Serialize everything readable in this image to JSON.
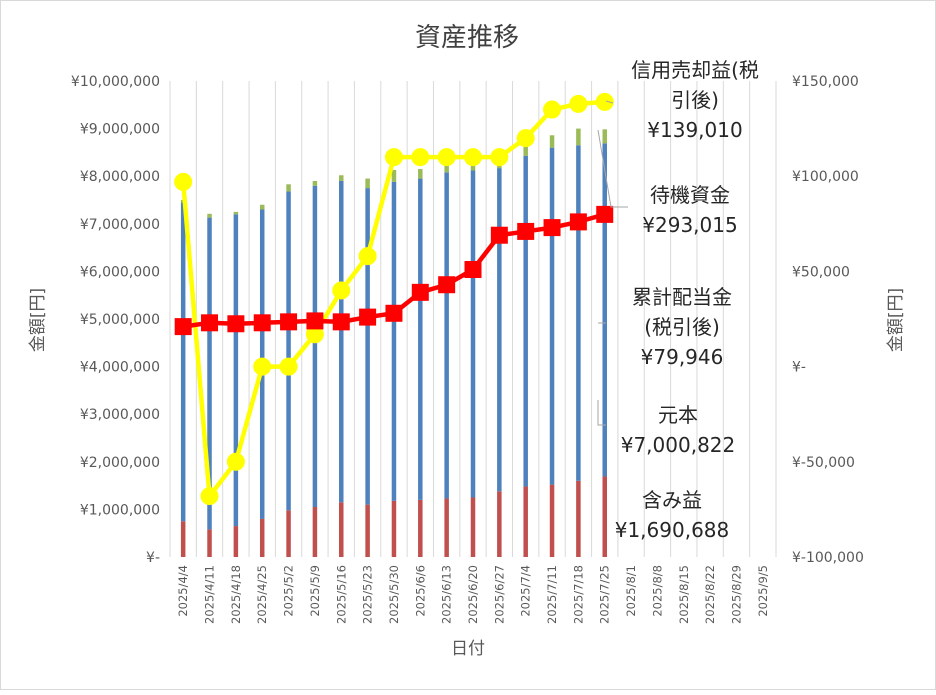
{
  "chart_data": {
    "type": "bar",
    "title": "資産推移",
    "xlabel": "日付",
    "ylabel_left": "金額[円]",
    "ylabel_right": "金額[円]",
    "ylim_left": [
      0,
      10000000
    ],
    "ylim_right": [
      -100000,
      150000
    ],
    "left_ticks": [
      "¥-",
      "¥1,000,000",
      "¥2,000,000",
      "¥3,000,000",
      "¥4,000,000",
      "¥5,000,000",
      "¥6,000,000",
      "¥7,000,000",
      "¥8,000,000",
      "¥9,000,000",
      "¥10,000,000"
    ],
    "right_ticks": [
      "¥-100,000",
      "¥-50,000",
      "¥-",
      "¥50,000",
      "¥100,000",
      "¥150,000"
    ],
    "categories": [
      "2025/4/4",
      "2025/4/11",
      "2025/4/18",
      "2025/4/25",
      "2025/5/2",
      "2025/5/9",
      "2025/5/16",
      "2025/5/23",
      "2025/5/30",
      "2025/6/6",
      "2025/6/13",
      "2025/6/20",
      "2025/6/27",
      "2025/7/4",
      "2025/7/11",
      "2025/7/18",
      "2025/7/25",
      "2025/8/1",
      "2025/8/8",
      "2025/8/15",
      "2025/8/22",
      "2025/8/29",
      "2025/9/5"
    ],
    "grid": "vertical",
    "series": [
      {
        "name": "含み益",
        "kind": "stacked-bar",
        "axis": "left",
        "color": "#c0504d",
        "values": [
          750000,
          580000,
          650000,
          800000,
          980000,
          1050000,
          1150000,
          1100000,
          1180000,
          1200000,
          1230000,
          1250000,
          1380000,
          1480000,
          1520000,
          1600000,
          1690688,
          null,
          null,
          null,
          null,
          null,
          null
        ]
      },
      {
        "name": "元本",
        "kind": "stacked-bar",
        "axis": "left",
        "color": "#4f81bd",
        "values": [
          6700000,
          6550000,
          6550000,
          6500000,
          6700000,
          6750000,
          6750000,
          6650000,
          6700000,
          6750000,
          6850000,
          6870000,
          6790000,
          6950000,
          7080000,
          7050000,
          7000822,
          null,
          null,
          null,
          null,
          null,
          null
        ]
      },
      {
        "name": "待機資金",
        "kind": "stacked-bar",
        "axis": "left",
        "color": "#9bbb59",
        "values": [
          50000,
          80000,
          50000,
          100000,
          150000,
          100000,
          120000,
          200000,
          250000,
          200000,
          150000,
          180000,
          180000,
          200000,
          260000,
          350000,
          293015,
          null,
          null,
          null,
          null,
          null,
          null
        ]
      },
      {
        "name": "信用売却益(税引後)",
        "kind": "line",
        "axis": "right",
        "color": "#ffff00",
        "marker": "circle",
        "values": [
          97000,
          -68000,
          -50000,
          0,
          0,
          17000,
          40000,
          58000,
          110000,
          110000,
          110000,
          110000,
          110000,
          120000,
          135000,
          138000,
          139010,
          null,
          null,
          null,
          null,
          null,
          null
        ]
      },
      {
        "name": "累計配当金(税引後)",
        "kind": "line",
        "axis": "right",
        "color": "#ff0000",
        "marker": "square",
        "values": [
          21000,
          23000,
          22500,
          23000,
          23500,
          24000,
          23500,
          26000,
          28000,
          39000,
          43000,
          51000,
          69000,
          71000,
          73000,
          76000,
          79946,
          null,
          null,
          null,
          null,
          null,
          null
        ]
      }
    ],
    "annotations": [
      {
        "lines": [
          "信用売却益(税",
          "引後)",
          "¥139,010"
        ]
      },
      {
        "lines": [
          "待機資金",
          "¥293,015"
        ]
      },
      {
        "lines": [
          "累計配当金",
          "(税引後)",
          "¥79,946"
        ]
      },
      {
        "lines": [
          "元本",
          "¥7,000,822"
        ]
      },
      {
        "lines": [
          "含み益",
          "¥1,690,688"
        ]
      }
    ]
  }
}
